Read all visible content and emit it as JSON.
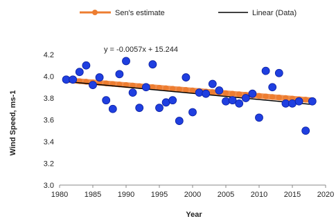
{
  "chart_data": {
    "type": "scatter",
    "xlabel": "Year",
    "ylabel": "Wind Speed, ms-1",
    "xlim": [
      1980,
      2020
    ],
    "ylim": [
      3.0,
      4.2
    ],
    "xticks": [
      1980,
      1985,
      1990,
      1995,
      2000,
      2005,
      2010,
      2015,
      2020
    ],
    "yticks": [
      "3.0",
      "3.2",
      "3.4",
      "3.6",
      "3.8",
      "4.0",
      "4.2"
    ],
    "grid": false,
    "legend_position": "top",
    "annotation": "y = -0.0057x + 15.244",
    "series": [
      {
        "name": "Sen's estimate",
        "kind": "line-with-markers",
        "color": "#ED7D31",
        "x": [
          1981,
          1982,
          1983,
          1984,
          1985,
          1986,
          1987,
          1988,
          1989,
          1990,
          1991,
          1992,
          1993,
          1994,
          1995,
          1996,
          1997,
          1998,
          1999,
          2000,
          2001,
          2002,
          2003,
          2004,
          2005,
          2006,
          2007,
          2008,
          2009,
          2010,
          2011,
          2012,
          2013,
          2014,
          2015,
          2016,
          2017,
          2018
        ],
        "y": [
          3.97,
          3.96,
          3.955,
          3.95,
          3.945,
          3.94,
          3.935,
          3.93,
          3.925,
          3.92,
          3.915,
          3.91,
          3.905,
          3.9,
          3.895,
          3.89,
          3.885,
          3.88,
          3.875,
          3.87,
          3.865,
          3.86,
          3.855,
          3.85,
          3.845,
          3.84,
          3.835,
          3.83,
          3.825,
          3.82,
          3.815,
          3.81,
          3.805,
          3.8,
          3.795,
          3.79,
          3.785,
          3.78
        ]
      },
      {
        "name": "Linear (Data)",
        "kind": "line",
        "color": "#000000",
        "x": [
          1981,
          2018
        ],
        "y": [
          3.952,
          3.741
        ]
      },
      {
        "name": "Data",
        "kind": "scatter",
        "color": "#1F3FE0",
        "x": [
          1981,
          1982,
          1983,
          1984,
          1985,
          1986,
          1987,
          1988,
          1989,
          1990,
          1991,
          1992,
          1993,
          1994,
          1995,
          1996,
          1997,
          1998,
          1999,
          2000,
          2001,
          2002,
          2003,
          2004,
          2005,
          2006,
          2007,
          2008,
          2009,
          2010,
          2011,
          2012,
          2013,
          2014,
          2015,
          2016,
          2017,
          2018
        ],
        "y": [
          3.97,
          3.97,
          4.04,
          4.1,
          3.92,
          3.99,
          3.78,
          3.7,
          4.02,
          4.14,
          3.85,
          3.71,
          3.9,
          4.11,
          3.71,
          3.76,
          3.78,
          3.59,
          3.99,
          3.67,
          3.85,
          3.84,
          3.93,
          3.87,
          3.77,
          3.78,
          3.75,
          3.8,
          3.84,
          3.62,
          4.05,
          3.9,
          4.03,
          3.75,
          3.75,
          3.77,
          3.5,
          3.77
        ]
      }
    ]
  }
}
